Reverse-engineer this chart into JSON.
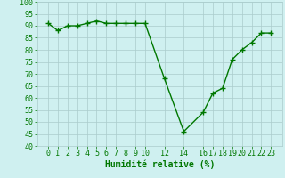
{
  "x": [
    0,
    1,
    2,
    3,
    4,
    5,
    6,
    7,
    8,
    9,
    10,
    12,
    14,
    16,
    17,
    18,
    19,
    20,
    21,
    22,
    23
  ],
  "y": [
    91,
    88,
    90,
    90,
    91,
    92,
    91,
    91,
    91,
    91,
    91,
    68,
    46,
    54,
    62,
    64,
    76,
    80,
    83,
    87,
    87
  ],
  "line_color": "#007700",
  "marker": "+",
  "marker_size": 4,
  "line_width": 1.0,
  "bg_color": "#cff0f0",
  "grid_color": "#aacccc",
  "xlabel": "Humidité relative (%)",
  "xlabel_color": "#007700",
  "xlabel_fontsize": 7,
  "tick_color": "#007700",
  "tick_fontsize": 6,
  "ylim": [
    40,
    100
  ],
  "yticks": [
    40,
    45,
    50,
    55,
    60,
    65,
    70,
    75,
    80,
    85,
    90,
    95,
    100
  ],
  "xticks": [
    0,
    1,
    2,
    3,
    4,
    5,
    6,
    7,
    8,
    9,
    10,
    12,
    14,
    16,
    17,
    18,
    19,
    20,
    21,
    22,
    23
  ]
}
